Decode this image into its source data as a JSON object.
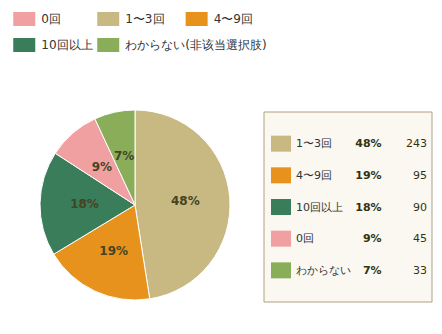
{
  "chart_data": {
    "type": "pie",
    "categories": [
      "1〜3回",
      "4〜9回",
      "10回以上",
      "0回",
      "わからない"
    ],
    "values": [
      48,
      19,
      18,
      9,
      7
    ],
    "value_labels": [
      "48%",
      "19%",
      "18%",
      "9%",
      "7%"
    ],
    "counts": [
      243,
      95,
      90,
      45,
      33
    ],
    "colors": [
      "#c8b882",
      "#e8921e",
      "#3a7d5a",
      "#f0a0a0",
      "#8aad5a"
    ],
    "legend_entries": [
      {
        "label": "0回",
        "color": "#f0a0a0"
      },
      {
        "label": "1〜3回",
        "color": "#c8b882"
      },
      {
        "label": "4〜9回",
        "color": "#e8921e"
      },
      {
        "label": "10回以上",
        "color": "#3a7d5a"
      },
      {
        "label": "わからない(非该当選択肢)",
        "color": "#8aad5a"
      }
    ],
    "data_labels": true,
    "legend": "right"
  }
}
